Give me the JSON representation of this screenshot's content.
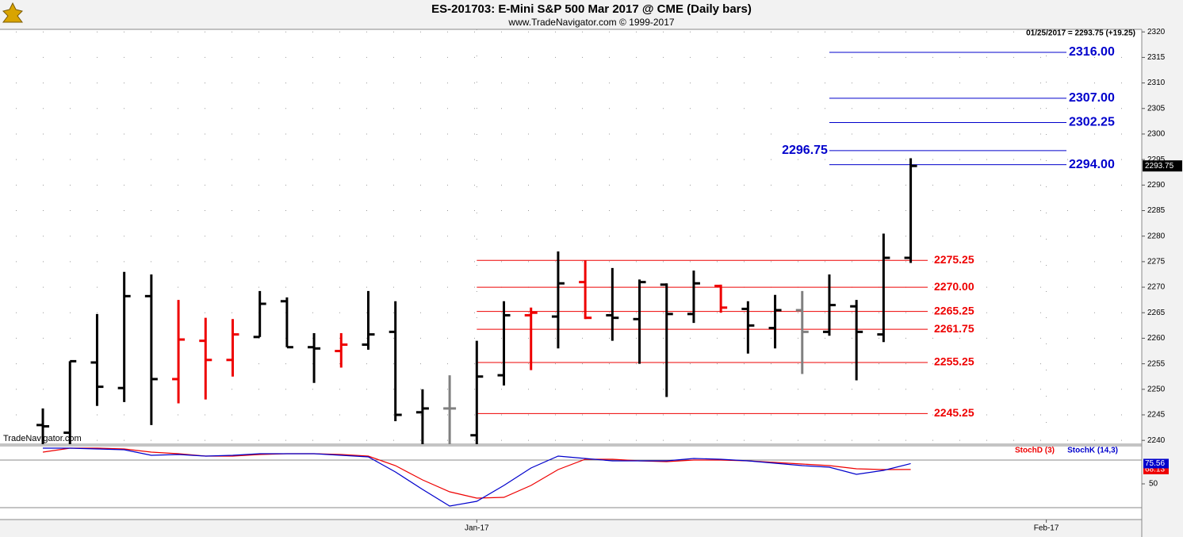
{
  "header": {
    "title": "ES-201703:  E-Mini S&P 500 Mar 2017 @ CME  (Daily bars)",
    "subtitle": "www.TradeNavigator.com © 1999-2017",
    "quote": "01/25/2017 = 2293.75 (+19.25)",
    "watermark": "TradeNavigator.com"
  },
  "chart_data": [
    {
      "type": "ohlc",
      "x": [
        0,
        1,
        2,
        3,
        4,
        5,
        6,
        7,
        8,
        9,
        10,
        11,
        12,
        13,
        14,
        15,
        16,
        17,
        18,
        19,
        20,
        21,
        22,
        23,
        24,
        25,
        26,
        27,
        28,
        29,
        30,
        31,
        32
      ],
      "open": [
        2243,
        2241.5,
        2255.25,
        2250.25,
        2268.25,
        2252,
        2259.5,
        2255.75,
        2260.25,
        2267.25,
        2258.25,
        2257.5,
        2258.75,
        2261.25,
        2245.5,
        2246.25,
        2241,
        2252.75,
        2264.5,
        2264.25,
        2271,
        2264.5,
        2263.75,
        2270.5,
        2264.75,
        2270.25,
        2265.75,
        2262,
        2265.5,
        2261.25,
        2266.25,
        2260.75,
        2275.75
      ],
      "high": [
        2246.25,
        2255.5,
        2264.75,
        2273,
        2272.5,
        2267.5,
        2264,
        2263.75,
        2269.25,
        2268,
        2261,
        2261,
        2269.25,
        2267.25,
        2250,
        2252.75,
        2259.5,
        2267.25,
        2266,
        2277,
        2275.25,
        2273.75,
        2271.5,
        2270.75,
        2273.25,
        2270.5,
        2267.25,
        2268.5,
        2269.25,
        2272.5,
        2267.5,
        2280.5,
        2295.25
      ],
      "low": [
        2238,
        2239,
        2246.75,
        2247.5,
        2243,
        2247.25,
        2248,
        2252.5,
        2260.25,
        2258.25,
        2251.25,
        2254.25,
        2257.75,
        2243.75,
        2239,
        2239,
        2239,
        2250.75,
        2253.75,
        2258,
        2263.75,
        2259.5,
        2255,
        2248.5,
        2263,
        2265,
        2257,
        2258,
        2253,
        2260.5,
        2251.75,
        2259.25,
        2274.75
      ],
      "close": [
        2242.75,
        2255.5,
        2250.5,
        2268.25,
        2252,
        2259.75,
        2255.75,
        2260.75,
        2266.75,
        2258.25,
        2258,
        2258.75,
        2260.75,
        2245,
        2246.25,
        2246.25,
        2252.5,
        2264.5,
        2265,
        2270.75,
        2264,
        2264,
        2271,
        2264.75,
        2270.75,
        2266,
        2262.5,
        2265.5,
        2261.25,
        2266.5,
        2261.25,
        2275.75,
        2293.75
      ],
      "bar_colors": [
        "#000000",
        "#000000",
        "#000000",
        "#000000",
        "#000000",
        "#ee0000",
        "#ee0000",
        "#ee0000",
        "#000000",
        "#000000",
        "#000000",
        "#ee0000",
        "#000000",
        "#000000",
        "#000000",
        "#808080",
        "#000000",
        "#000000",
        "#ee0000",
        "#000000",
        "#ee0000",
        "#000000",
        "#000000",
        "#000000",
        "#000000",
        "#ee0000",
        "#000000",
        "#000000",
        "#808080",
        "#000000",
        "#000000",
        "#000000",
        "#000000"
      ],
      "xlim": [
        -1.58,
        40.52
      ],
      "xticks": [
        {
          "value": 16,
          "label": "Jan-17"
        },
        {
          "value": 37,
          "label": "Feb-17"
        }
      ],
      "ylim": [
        2239.25,
        2320.5
      ],
      "yticks": [
        2240,
        2245,
        2250,
        2255,
        2260,
        2265,
        2270,
        2275,
        2280,
        2285,
        2290,
        2295,
        2300,
        2305,
        2310,
        2315,
        2320
      ],
      "grid": true,
      "levels": [
        {
          "color": "#ee0000",
          "values": [
            2275.25,
            2270,
            2265.25,
            2261.75,
            2255.25,
            2245.25
          ],
          "value_labels": [
            "2275.25",
            "2270.00",
            "2265.25",
            "2261.75",
            "2255.25",
            "2245.25"
          ]
        },
        {
          "color": "#0000cc",
          "values": [
            2316,
            2307,
            2302.25,
            2296.75,
            2294
          ],
          "value_labels": [
            "2316.00",
            "2307.00",
            "2302.25",
            "2296.75",
            "2294.00"
          ]
        }
      ]
    },
    {
      "type": "line",
      "x": [
        0,
        1,
        2,
        3,
        4,
        5,
        6,
        7,
        8,
        9,
        10,
        11,
        12,
        13,
        14,
        15,
        16,
        17,
        18,
        19,
        20,
        21,
        22,
        23,
        24,
        25,
        26,
        27,
        28,
        29,
        30,
        31,
        32
      ],
      "series": [
        {
          "name": "StochD (3)",
          "color": "#ee0000",
          "values": [
            90,
            95,
            95,
            94,
            90,
            88,
            85,
            85,
            87,
            88,
            88,
            87,
            85,
            73,
            55,
            40,
            32,
            33,
            48,
            68,
            81,
            81,
            79,
            78,
            80,
            80,
            79,
            77,
            75,
            73,
            69,
            68,
            68.13
          ]
        },
        {
          "name": "StochK (14,3)",
          "color": "#0000cc",
          "values": [
            95,
            95,
            94,
            93,
            86,
            87,
            85,
            86,
            88,
            88,
            88,
            86,
            84,
            65,
            43,
            22,
            28,
            48,
            70,
            85,
            82,
            79,
            79,
            79,
            82,
            81,
            79,
            76,
            73,
            71,
            62,
            67,
            75.56
          ]
        }
      ],
      "ylim": [
        5,
        98
      ],
      "yticks": [
        50
      ],
      "hlines": [
        80,
        20
      ]
    }
  ]
}
